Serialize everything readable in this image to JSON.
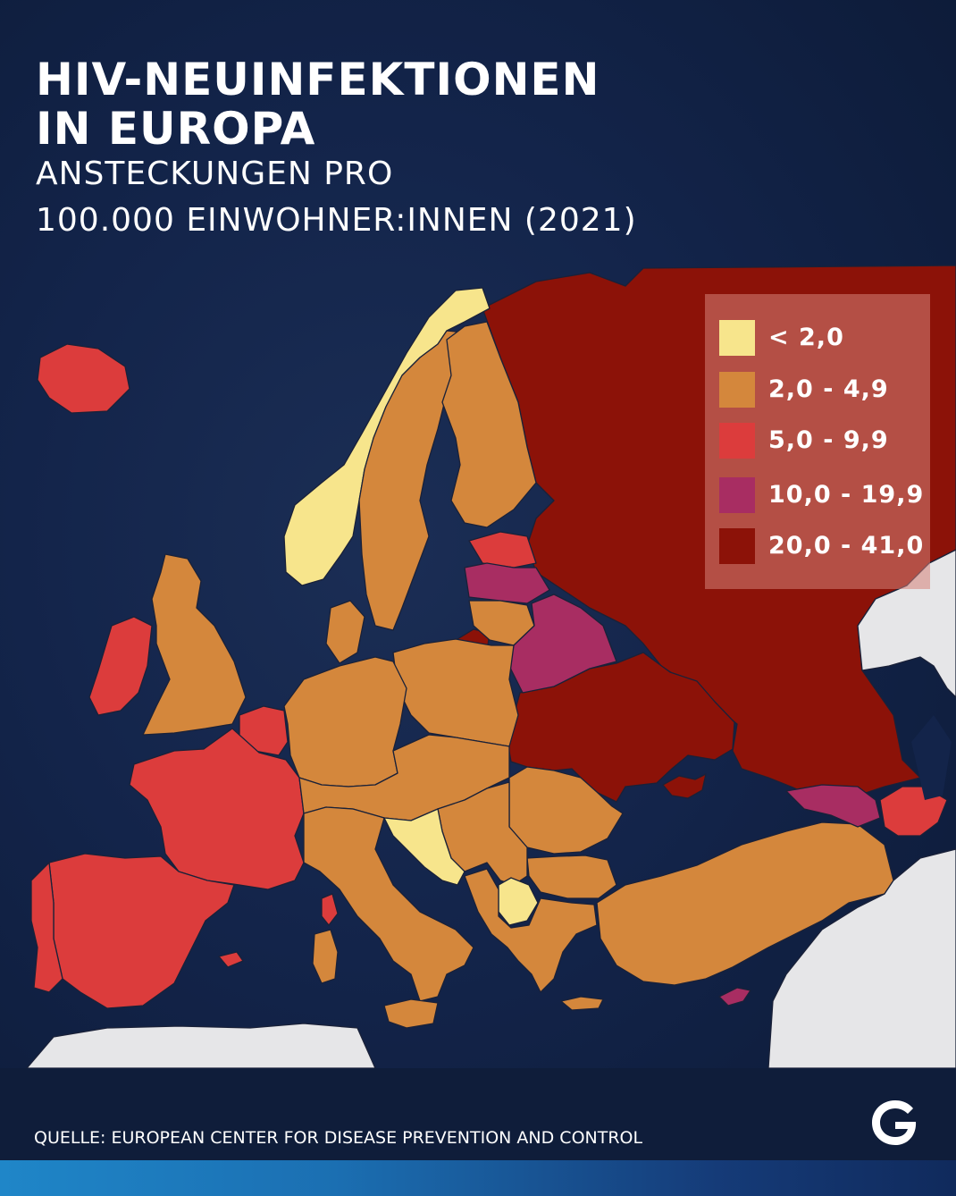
{
  "title": {
    "line1": "HIV-NEUINFEKTIONEN",
    "line2": "IN EUROPA"
  },
  "subtitle": {
    "line1": "ANSTECKUNGEN PRO",
    "line2": "100.000 EINWOHNER:INNEN (2021)"
  },
  "legend": [
    {
      "label": "< 2,0",
      "color": "#f7e58c"
    },
    {
      "label": "2,0 - 4,9",
      "color": "#d4873c"
    },
    {
      "label": "5,0 - 9,9",
      "color": "#dc3c3c"
    },
    {
      "label": "10,0 - 19,9",
      "color": "#a82d62"
    },
    {
      "label": "20,0 - 41,0",
      "color": "#8c1208"
    }
  ],
  "colors": {
    "no_data_land": "#e6e6e8",
    "sea": "#13244a",
    "border_lines": "#1a2138"
  },
  "source": "QUELLE: EUROPEAN CENTER FOR DISEASE PREVENTION AND CONTROL",
  "logo_icon": "g-logo-icon"
}
